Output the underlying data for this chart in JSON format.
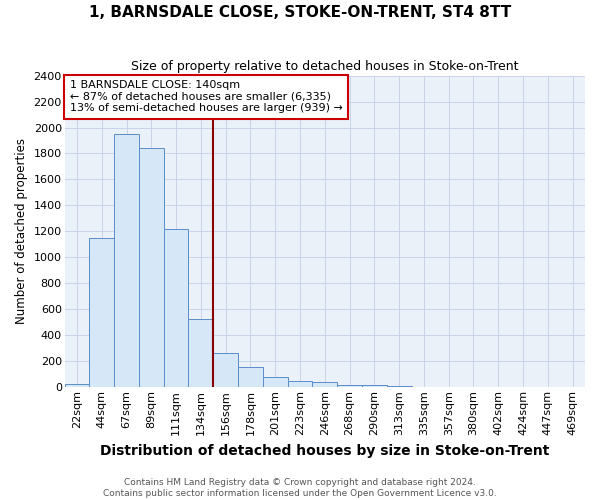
{
  "title": "1, BARNSDALE CLOSE, STOKE-ON-TRENT, ST4 8TT",
  "subtitle": "Size of property relative to detached houses in Stoke-on-Trent",
  "xlabel": "Distribution of detached houses by size in Stoke-on-Trent",
  "ylabel": "Number of detached properties",
  "footer_line1": "Contains HM Land Registry data © Crown copyright and database right 2024.",
  "footer_line2": "Contains public sector information licensed under the Open Government Licence v3.0.",
  "bin_labels": [
    "22sqm",
    "44sqm",
    "67sqm",
    "89sqm",
    "111sqm",
    "134sqm",
    "156sqm",
    "178sqm",
    "201sqm",
    "223sqm",
    "246sqm",
    "268sqm",
    "290sqm",
    "313sqm",
    "335sqm",
    "357sqm",
    "380sqm",
    "402sqm",
    "424sqm",
    "447sqm",
    "469sqm"
  ],
  "bar_values": [
    25,
    1150,
    1950,
    1840,
    1215,
    525,
    265,
    155,
    80,
    50,
    42,
    20,
    14,
    10,
    5,
    3,
    2,
    2,
    1,
    1,
    1
  ],
  "bar_color": "#d6e8f7",
  "bar_edge_color": "#5b8dc8",
  "grid_color": "#c8d4e8",
  "plot_bg_color": "#eaf1f9",
  "figure_bg_color": "#ffffff",
  "vline_x": 5,
  "vline_color": "#8b0000",
  "annotation_text": "1 BARNSDALE CLOSE: 140sqm\n← 87% of detached houses are smaller (6,335)\n13% of semi-detached houses are larger (939) →",
  "annotation_box_color": "white",
  "annotation_box_edge": "#cc0000",
  "ylim": [
    0,
    2400
  ],
  "yticks": [
    0,
    200,
    400,
    600,
    800,
    1000,
    1200,
    1400,
    1600,
    1800,
    2000,
    2200,
    2400
  ],
  "title_fontsize": 11,
  "subtitle_fontsize": 9,
  "xlabel_fontsize": 10,
  "ylabel_fontsize": 8.5,
  "tick_fontsize": 8,
  "footer_fontsize": 6.5,
  "annotation_fontsize": 8
}
